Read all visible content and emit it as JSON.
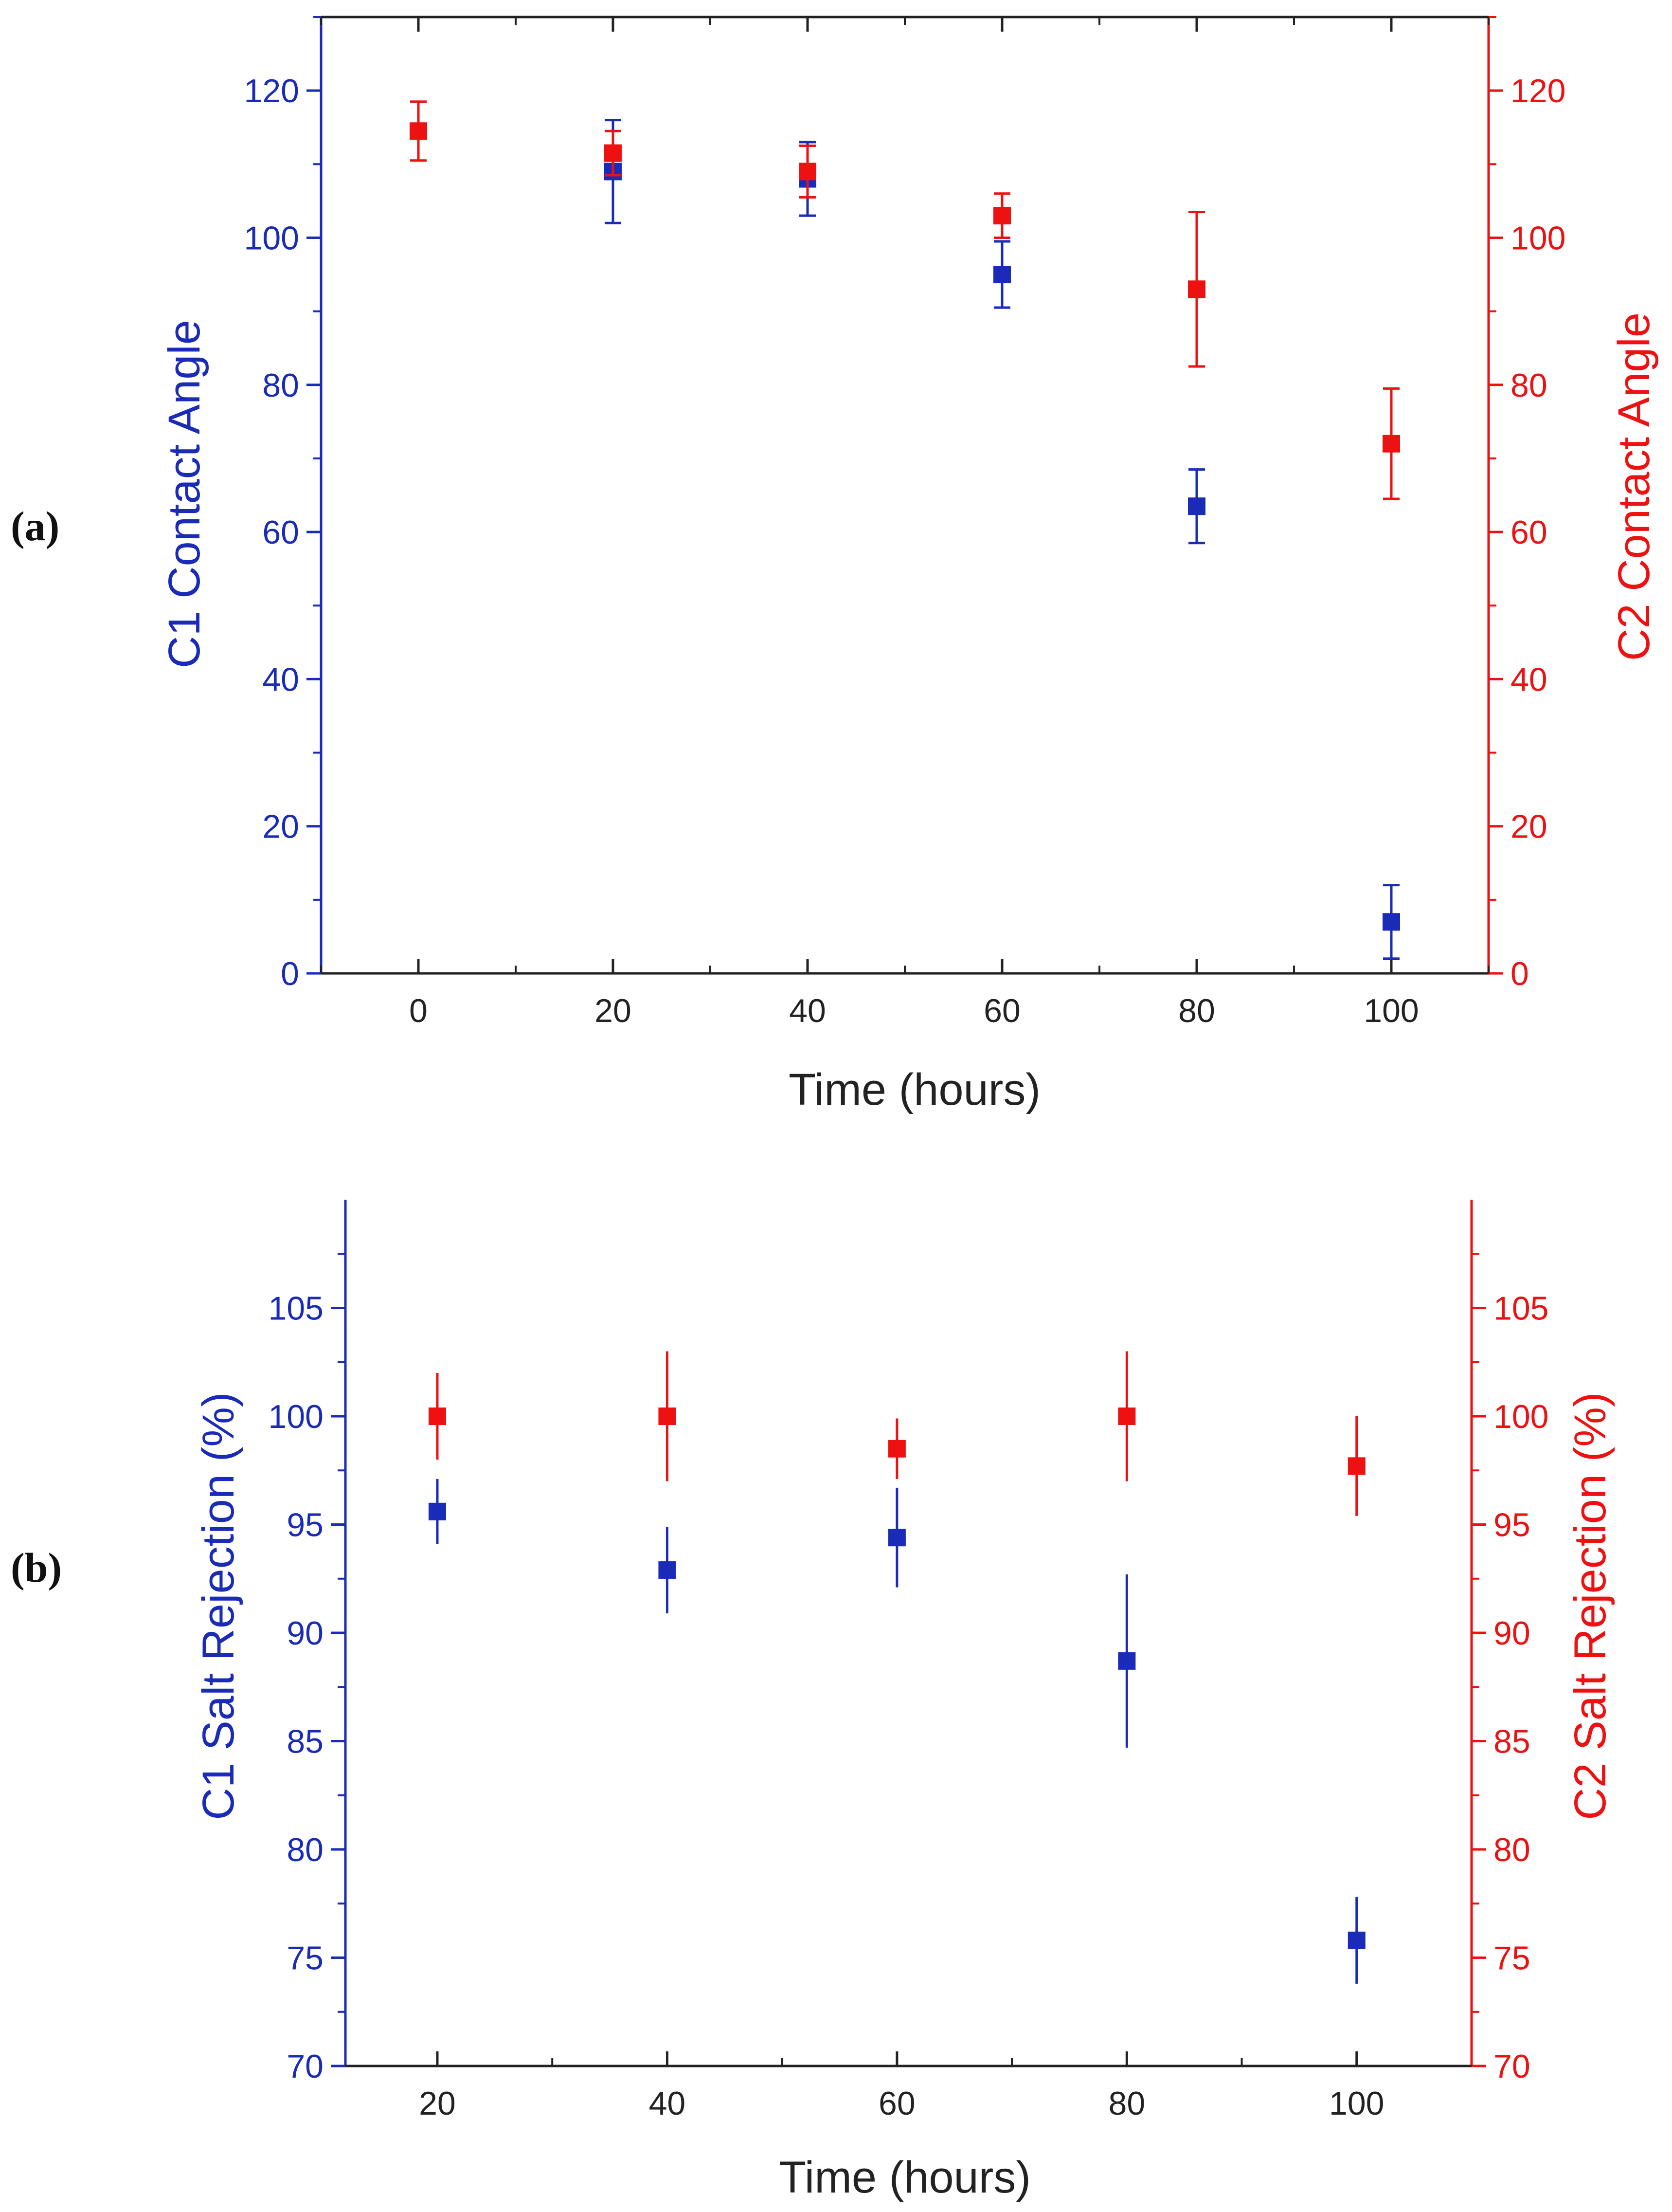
{
  "chart_data": [
    {
      "id": "a",
      "type": "scatter",
      "panel_label": "(a)",
      "xlabel": "Time (hours)",
      "ylabel_left": "C1 Contact Angle",
      "ylabel_right": "C2 Contact Angle",
      "xlim": [
        -10,
        110
      ],
      "ylim_left": [
        0,
        130
      ],
      "ylim_right": [
        0,
        130
      ],
      "x_ticks": [
        0,
        20,
        40,
        60,
        80,
        100
      ],
      "x_tick_labels": [
        "0",
        "20",
        "40",
        "60",
        "80",
        "100"
      ],
      "x_minor_ticks": [
        -10,
        10,
        30,
        50,
        70,
        90,
        110
      ],
      "y_ticks_left": [
        0,
        20,
        40,
        60,
        80,
        100,
        120
      ],
      "y_tick_labels_left": [
        "0",
        "20",
        "40",
        "60",
        "80",
        "100",
        "120"
      ],
      "y_minor_left": [
        10,
        30,
        50,
        70,
        90,
        110,
        130
      ],
      "y_ticks_right": [
        0,
        20,
        40,
        60,
        80,
        100,
        120
      ],
      "y_tick_labels_right": [
        "0",
        "20",
        "40",
        "60",
        "80",
        "100",
        "120"
      ],
      "y_minor_right": [
        10,
        30,
        50,
        70,
        90,
        110,
        130
      ],
      "grid": false,
      "series": [
        {
          "name": "C1",
          "axis": "left",
          "color": "#1a2bb8",
          "x": [
            20,
            40,
            60,
            80,
            100
          ],
          "y": [
            109,
            108,
            95,
            63.5,
            7
          ],
          "err": [
            7,
            5,
            4.5,
            5,
            5
          ]
        },
        {
          "name": "C2",
          "axis": "right",
          "color": "#ee1111",
          "x": [
            0,
            20,
            40,
            60,
            80,
            100
          ],
          "y": [
            114.5,
            111.5,
            109,
            103,
            93,
            72
          ],
          "err": [
            4,
            3,
            3.5,
            3,
            10.5,
            7.5
          ]
        }
      ]
    },
    {
      "id": "b",
      "type": "scatter",
      "panel_label": "(b)",
      "xlabel": "Time (hours)",
      "ylabel_left": "C1 Salt Rejection (%)",
      "ylabel_right": "C2 Salt Rejection (%)",
      "xlim": [
        12,
        110
      ],
      "ylim_left": [
        70,
        110
      ],
      "ylim_right": [
        70,
        110
      ],
      "x_ticks": [
        20,
        40,
        60,
        80,
        100
      ],
      "x_tick_labels": [
        "20",
        "40",
        "60",
        "80",
        "100"
      ],
      "x_minor_ticks": [
        30,
        50,
        70,
        90
      ],
      "y_ticks_left": [
        70,
        75,
        80,
        85,
        90,
        95,
        100,
        105
      ],
      "y_tick_labels_left": [
        "70",
        "75",
        "80",
        "85",
        "90",
        "95",
        "100",
        "105"
      ],
      "y_minor_left": [
        72.5,
        77.5,
        82.5,
        87.5,
        92.5,
        97.5,
        102.5,
        107.5
      ],
      "y_ticks_right": [
        70,
        75,
        80,
        85,
        90,
        95,
        100,
        105
      ],
      "y_tick_labels_right": [
        "70",
        "75",
        "80",
        "85",
        "90",
        "95",
        "100",
        "105"
      ],
      "y_minor_right": [
        72.5,
        77.5,
        82.5,
        87.5,
        92.5,
        97.5,
        102.5,
        107.5
      ],
      "grid": false,
      "series": [
        {
          "name": "C1",
          "axis": "left",
          "color": "#1a2bb8",
          "x": [
            20,
            40,
            60,
            80,
            100
          ],
          "y": [
            95.6,
            92.9,
            94.4,
            88.7,
            75.8
          ],
          "err": [
            1.5,
            2,
            2.3,
            4,
            2
          ]
        },
        {
          "name": "C2",
          "axis": "right",
          "color": "#ee1111",
          "x": [
            20,
            40,
            60,
            80,
            100
          ],
          "y": [
            100,
            100,
            98.5,
            100,
            97.7
          ],
          "err": [
            2,
            3,
            1.4,
            3,
            2.3
          ]
        }
      ]
    }
  ]
}
